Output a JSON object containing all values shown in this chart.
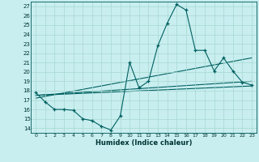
{
  "title": "",
  "xlabel": "Humidex (Indice chaleur)",
  "bg_color": "#c8eef0",
  "grid_color": "#a8d8d0",
  "line_color": "#006060",
  "xlim": [
    -0.5,
    23.5
  ],
  "ylim": [
    13.5,
    27.5
  ],
  "xticks": [
    0,
    1,
    2,
    3,
    4,
    5,
    6,
    7,
    8,
    9,
    10,
    11,
    12,
    13,
    14,
    15,
    16,
    17,
    18,
    19,
    20,
    21,
    22,
    23
  ],
  "yticks": [
    14,
    15,
    16,
    17,
    18,
    19,
    20,
    21,
    22,
    23,
    24,
    25,
    26,
    27
  ],
  "line1_x": [
    0,
    1,
    2,
    3,
    4,
    5,
    6,
    7,
    8,
    9,
    10,
    11,
    12,
    13,
    14,
    15,
    16,
    17,
    18,
    19,
    20,
    21,
    22,
    23
  ],
  "line1_y": [
    17.8,
    16.8,
    16.0,
    16.0,
    15.9,
    15.0,
    14.8,
    14.2,
    13.8,
    15.3,
    21.0,
    18.3,
    19.0,
    22.8,
    25.2,
    27.2,
    26.6,
    22.3,
    22.3,
    20.1,
    21.5,
    20.1,
    18.9,
    18.6
  ],
  "line2_x": [
    0,
    23
  ],
  "line2_y": [
    17.5,
    18.5
  ],
  "line3_x": [
    0,
    23
  ],
  "line3_y": [
    17.2,
    21.5
  ],
  "line4_x": [
    0,
    23
  ],
  "line4_y": [
    17.5,
    19.0
  ]
}
